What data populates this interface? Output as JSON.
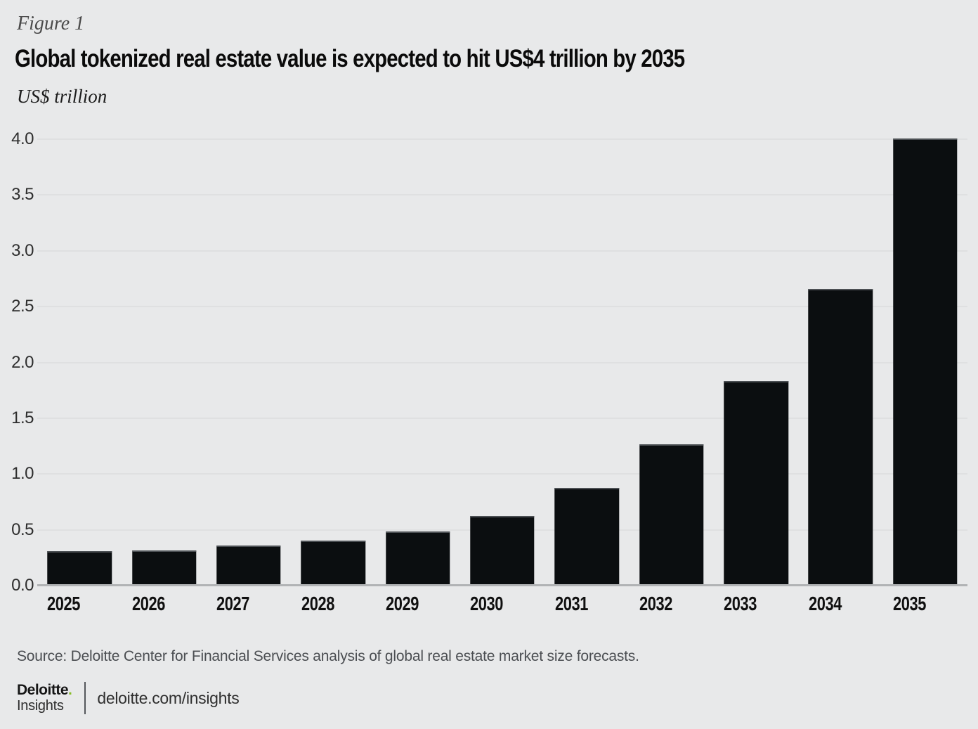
{
  "figure_label": "Figure 1",
  "title": "Global tokenized real estate value is expected to hit US$4 trillion by 2035",
  "unit_label": "US$ trillion",
  "source": "Source: Deloitte Center for Financial Services analysis of global real estate market size forecasts.",
  "footer": {
    "logo_line1": "Deloitte",
    "logo_dot": ".",
    "logo_line2": "Insights",
    "url": "deloitte.com/insights"
  },
  "colors": {
    "background": "#e8e9ea",
    "bar": "#0b0e10",
    "gridline": "#dfe0e1",
    "axis_line": "#b1b3b5",
    "title_text": "#0b0b0b",
    "gray_text": "#4b4e52",
    "accent_green": "#86bc25"
  },
  "chart_data": {
    "type": "bar",
    "categories": [
      "2025",
      "2026",
      "2027",
      "2028",
      "2029",
      "2030",
      "2031",
      "2032",
      "2033",
      "2034",
      "2035"
    ],
    "values": [
      0.3,
      0.31,
      0.35,
      0.4,
      0.48,
      0.62,
      0.87,
      1.26,
      1.83,
      2.65,
      4.0
    ],
    "title": "Global tokenized real estate value is expected to hit US$4 trillion by 2035",
    "xlabel": "",
    "ylabel": "US$ trillion",
    "ylim": [
      0,
      4.0
    ],
    "yticks": [
      0.0,
      0.5,
      1.0,
      1.5,
      2.0,
      2.5,
      3.0,
      3.5,
      4.0
    ],
    "ytick_format_decimals": 1,
    "grid": true,
    "legend": false,
    "bar_color": "#0b0e10"
  }
}
